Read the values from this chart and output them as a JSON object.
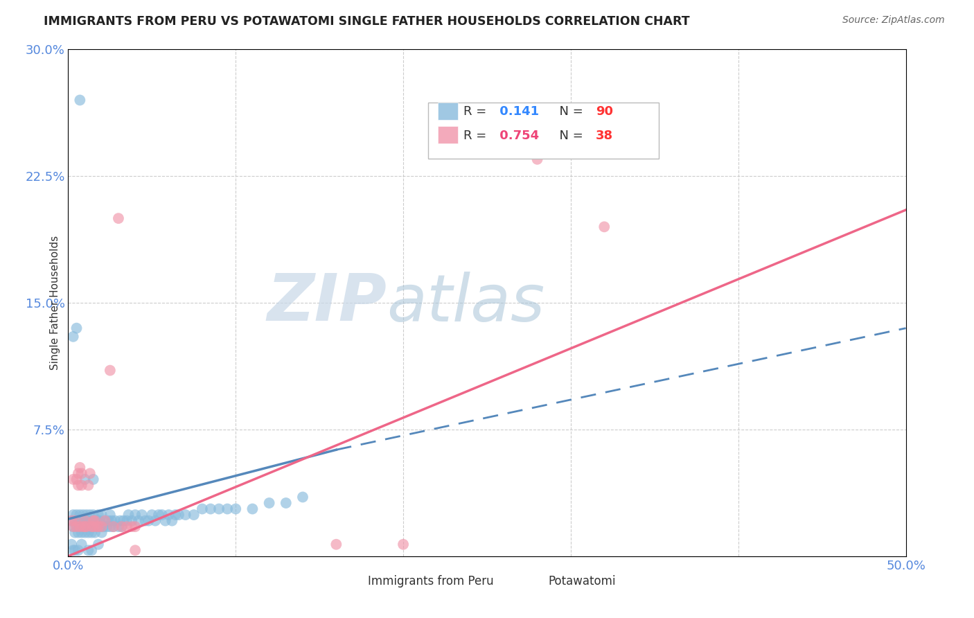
{
  "title": "IMMIGRANTS FROM PERU VS POTAWATOMI SINGLE FATHER HOUSEHOLDS CORRELATION CHART",
  "source": "Source: ZipAtlas.com",
  "ylabel": "Single Father Households",
  "xlim": [
    0.0,
    0.5
  ],
  "ylim": [
    0.0,
    0.3
  ],
  "background_color": "#ffffff",
  "grid_color": "#cccccc",
  "watermark_zip": "ZIP",
  "watermark_atlas": "atlas",
  "peru_color": "#88bbdd",
  "potawatomi_color": "#f095aa",
  "peru_line_color": "#5588bb",
  "potawatomi_line_color": "#ee6688",
  "peru_r": "0.141",
  "peru_n": "90",
  "pot_r": "0.754",
  "pot_n": "38",
  "peru_scatter_x": [
    0.002,
    0.003,
    0.003,
    0.004,
    0.004,
    0.005,
    0.005,
    0.006,
    0.006,
    0.007,
    0.007,
    0.008,
    0.008,
    0.009,
    0.009,
    0.01,
    0.01,
    0.011,
    0.011,
    0.012,
    0.012,
    0.013,
    0.013,
    0.014,
    0.014,
    0.015,
    0.015,
    0.016,
    0.016,
    0.017,
    0.018,
    0.018,
    0.019,
    0.019,
    0.02,
    0.02,
    0.021,
    0.022,
    0.023,
    0.024,
    0.025,
    0.025,
    0.026,
    0.027,
    0.028,
    0.03,
    0.031,
    0.032,
    0.033,
    0.035,
    0.036,
    0.038,
    0.04,
    0.042,
    0.044,
    0.046,
    0.048,
    0.05,
    0.052,
    0.054,
    0.056,
    0.058,
    0.06,
    0.062,
    0.064,
    0.066,
    0.07,
    0.075,
    0.08,
    0.085,
    0.09,
    0.095,
    0.1,
    0.11,
    0.12,
    0.13,
    0.14,
    0.003,
    0.005,
    0.007,
    0.01,
    0.015,
    0.002,
    0.003,
    0.004,
    0.006,
    0.008,
    0.012,
    0.014,
    0.018
  ],
  "peru_scatter_y": [
    0.03,
    0.025,
    0.035,
    0.02,
    0.03,
    0.025,
    0.035,
    0.02,
    0.03,
    0.025,
    0.035,
    0.02,
    0.03,
    0.025,
    0.035,
    0.02,
    0.03,
    0.025,
    0.035,
    0.02,
    0.03,
    0.025,
    0.035,
    0.02,
    0.03,
    0.025,
    0.035,
    0.02,
    0.03,
    0.025,
    0.03,
    0.035,
    0.025,
    0.03,
    0.02,
    0.035,
    0.025,
    0.03,
    0.025,
    0.03,
    0.025,
    0.035,
    0.03,
    0.025,
    0.03,
    0.025,
    0.03,
    0.025,
    0.03,
    0.03,
    0.035,
    0.03,
    0.035,
    0.03,
    0.035,
    0.03,
    0.03,
    0.035,
    0.03,
    0.035,
    0.035,
    0.03,
    0.035,
    0.03,
    0.035,
    0.035,
    0.035,
    0.035,
    0.04,
    0.04,
    0.04,
    0.04,
    0.04,
    0.04,
    0.045,
    0.045,
    0.05,
    0.13,
    0.135,
    0.27,
    0.065,
    0.065,
    0.01,
    0.005,
    0.005,
    0.005,
    0.01,
    0.005,
    0.005,
    0.01
  ],
  "pot_scatter_x": [
    0.002,
    0.003,
    0.004,
    0.005,
    0.006,
    0.006,
    0.007,
    0.008,
    0.008,
    0.009,
    0.01,
    0.01,
    0.011,
    0.012,
    0.013,
    0.014,
    0.015,
    0.015,
    0.016,
    0.017,
    0.018,
    0.02,
    0.022,
    0.025,
    0.027,
    0.03,
    0.032,
    0.035,
    0.038,
    0.04,
    0.16,
    0.2,
    0.28,
    0.32,
    0.003,
    0.005,
    0.007,
    0.04
  ],
  "pot_scatter_y": [
    0.03,
    0.025,
    0.03,
    0.025,
    0.06,
    0.07,
    0.025,
    0.06,
    0.07,
    0.025,
    0.025,
    0.03,
    0.025,
    0.06,
    0.07,
    0.025,
    0.025,
    0.03,
    0.03,
    0.025,
    0.025,
    0.025,
    0.03,
    0.11,
    0.025,
    0.2,
    0.025,
    0.025,
    0.025,
    0.025,
    0.01,
    0.01,
    0.235,
    0.195,
    0.065,
    0.065,
    0.075,
    0.005
  ],
  "peru_line": {
    "x0": 0.0,
    "y0": 0.022,
    "x1": 0.16,
    "y1": 0.063,
    "x2": 0.5,
    "y2": 0.135
  },
  "pot_line": {
    "x0": 0.0,
    "y0": 0.0,
    "x1": 0.5,
    "y2": 0.205
  }
}
